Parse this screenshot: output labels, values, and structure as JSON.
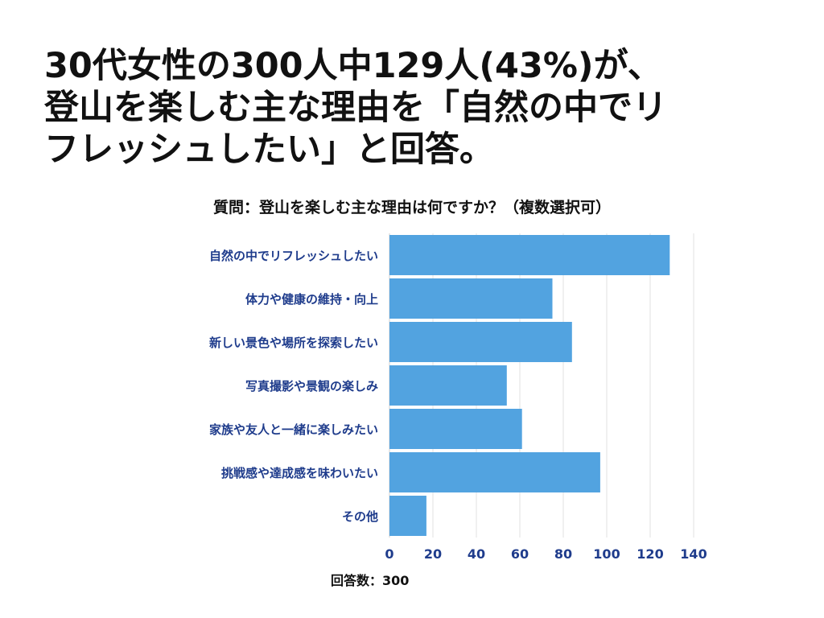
{
  "headline": "30代女性の300人中129人(43%)が、\n登山を楽しむ主な理由を「自然の中でリ\nフレッシュしたい」と回答。",
  "question": "質問：登山を楽しむ主な理由は何ですか？（複数選択可）",
  "footer": "回答数：300",
  "colors": {
    "bar": "#52a3e0",
    "label": "#1f3c8c",
    "grid": "#e2e2e2"
  },
  "chart_data": {
    "type": "bar",
    "orientation": "horizontal",
    "categories": [
      "自然の中でリフレッシュしたい",
      "体力や健康の維持・向上",
      "新しい景色や場所を探索したい",
      "写真撮影や景観の楽しみ",
      "家族や友人と一緒に楽しみたい",
      "挑戦感や達成感を味わいたい",
      "その他"
    ],
    "values": [
      129,
      75,
      84,
      54,
      61,
      97,
      17
    ],
    "xlim": [
      0,
      140
    ],
    "xticks": [
      0,
      20,
      40,
      60,
      80,
      100,
      120,
      140
    ],
    "grid": true
  }
}
